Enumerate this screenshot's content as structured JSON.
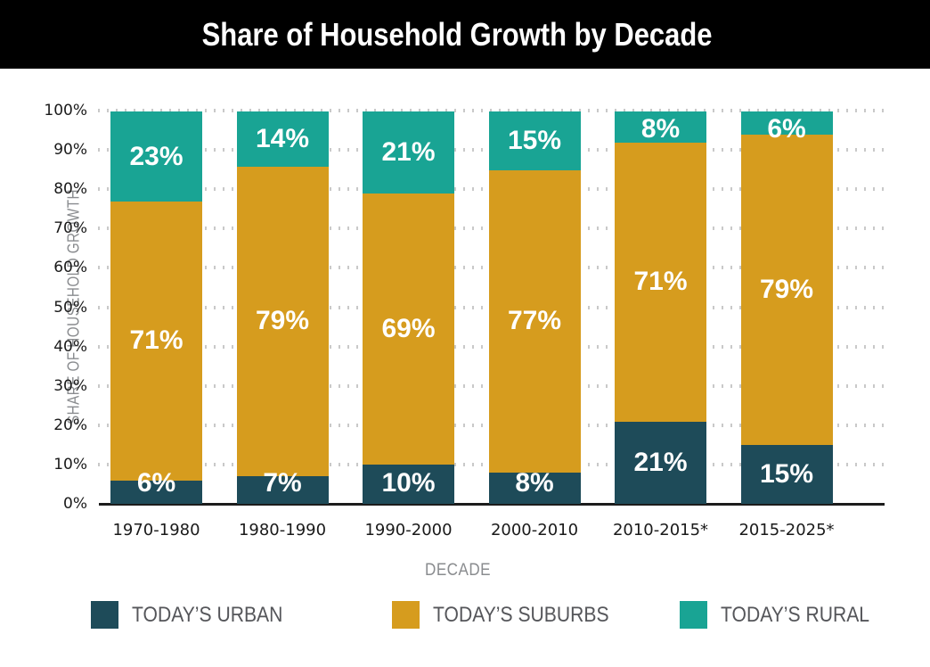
{
  "title": "Share of Household Growth by Decade",
  "chart_data": {
    "type": "bar",
    "stacked": true,
    "title": "Share of Household Growth by Decade",
    "categories": [
      "1970-1980",
      "1980-1990",
      "1990-2000",
      "2000-2010",
      "2010-2015*",
      "2015-2025*"
    ],
    "series": [
      {
        "name": "TODAY’S URBAN",
        "color": "#1E4B59",
        "values": [
          6,
          7,
          10,
          8,
          21,
          15
        ]
      },
      {
        "name": "TODAY’S SUBURBS",
        "color": "#D69C1E",
        "values": [
          71,
          79,
          69,
          77,
          71,
          79
        ]
      },
      {
        "name": "TODAY’S RURAL",
        "color": "#19A494",
        "values": [
          23,
          14,
          21,
          15,
          8,
          6
        ]
      }
    ],
    "xlabel": "DECADE",
    "ylabel": "SHARE OF HOUSEHOLD GROWTH",
    "ylim": [
      0,
      100
    ],
    "yticks": [
      "0%",
      "10%",
      "20%",
      "30%",
      "40%",
      "50%",
      "60%",
      "70%",
      "80%",
      "90%",
      "100%"
    ],
    "grid": "dotted-horizontal",
    "legend_position": "bottom",
    "value_suffix": "%"
  },
  "colors": {
    "background": "#FFFFFF",
    "banner_bg": "#000000",
    "title_text": "#FFFFFF",
    "axis_line": "#1C1C1C",
    "gridline": "#C9C9C9",
    "tick_label": "#1A1A1A",
    "axis_title": "#8A8C8F",
    "legend_label": "#55565A",
    "bar_label": "#FFFFFF"
  }
}
